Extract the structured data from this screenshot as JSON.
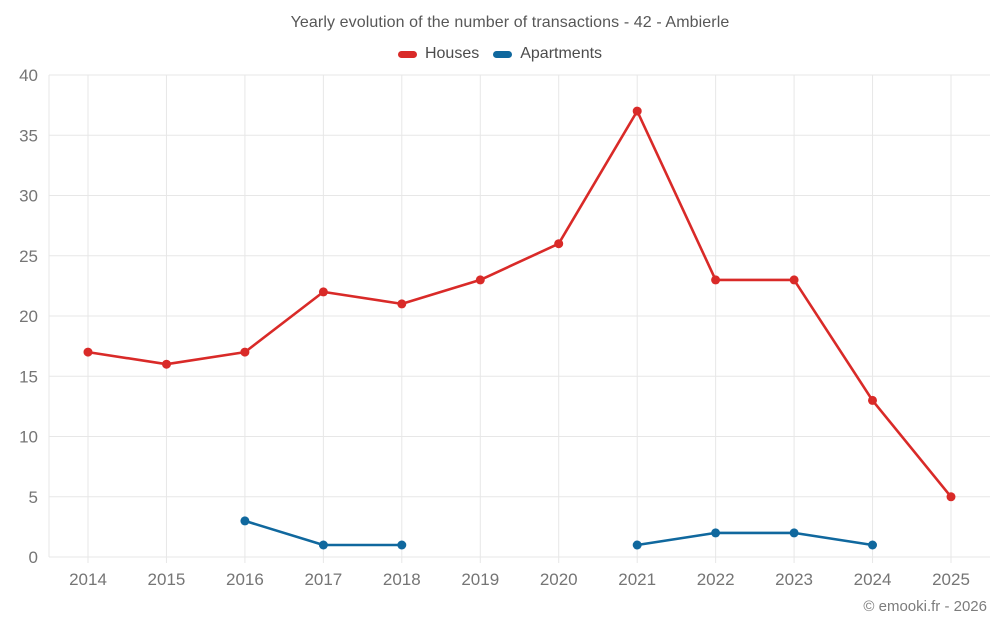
{
  "title": "Yearly evolution of the number of transactions - 42 - Ambierle",
  "footer": "© emooki.fr - 2026",
  "chart_data": {
    "type": "line",
    "x": [
      2014,
      2015,
      2016,
      2017,
      2018,
      2019,
      2020,
      2021,
      2022,
      2023,
      2024,
      2025
    ],
    "series": [
      {
        "name": "Houses",
        "color": "#d92a28",
        "values": [
          17,
          16,
          17,
          22,
          21,
          23,
          26,
          37,
          23,
          23,
          13,
          5
        ]
      },
      {
        "name": "Apartments",
        "color": "#10689e",
        "values": [
          null,
          null,
          3,
          1,
          1,
          null,
          null,
          1,
          2,
          2,
          1,
          null
        ]
      }
    ],
    "ylim": [
      0,
      40
    ],
    "yticks": [
      0,
      5,
      10,
      15,
      20,
      25,
      30,
      35,
      40
    ],
    "grid": true,
    "grid_color": "#e7e7e7",
    "legend_position": "top"
  }
}
